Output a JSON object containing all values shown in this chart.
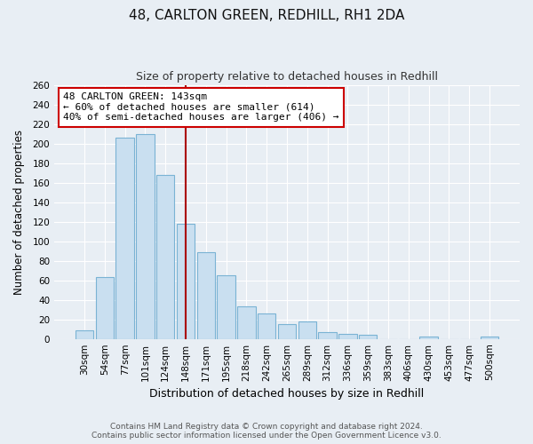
{
  "title": "48, CARLTON GREEN, REDHILL, RH1 2DA",
  "subtitle": "Size of property relative to detached houses in Redhill",
  "xlabel": "Distribution of detached houses by size in Redhill",
  "ylabel": "Number of detached properties",
  "bar_labels": [
    "30sqm",
    "54sqm",
    "77sqm",
    "101sqm",
    "124sqm",
    "148sqm",
    "171sqm",
    "195sqm",
    "218sqm",
    "242sqm",
    "265sqm",
    "289sqm",
    "312sqm",
    "336sqm",
    "359sqm",
    "383sqm",
    "406sqm",
    "430sqm",
    "453sqm",
    "477sqm",
    "500sqm"
  ],
  "bar_values": [
    9,
    63,
    206,
    210,
    168,
    118,
    89,
    65,
    33,
    26,
    15,
    18,
    7,
    5,
    4,
    0,
    0,
    2,
    0,
    0,
    2
  ],
  "bar_color": "#c9dff0",
  "bar_edge_color": "#7ab3d4",
  "highlight_index": 5,
  "vline_color": "#aa0000",
  "annotation_title": "48 CARLTON GREEN: 143sqm",
  "annotation_line1": "← 60% of detached houses are smaller (614)",
  "annotation_line2": "40% of semi-detached houses are larger (406) →",
  "annotation_box_color": "#ffffff",
  "annotation_box_edge": "#cc0000",
  "ylim": [
    0,
    260
  ],
  "yticks": [
    0,
    20,
    40,
    60,
    80,
    100,
    120,
    140,
    160,
    180,
    200,
    220,
    240,
    260
  ],
  "footer_line1": "Contains HM Land Registry data © Crown copyright and database right 2024.",
  "footer_line2": "Contains public sector information licensed under the Open Government Licence v3.0.",
  "background_color": "#e8eef4",
  "plot_bg_color": "#e8eef4",
  "grid_color": "#ffffff",
  "title_fontsize": 11,
  "subtitle_fontsize": 9,
  "tick_fontsize": 7.5,
  "ylabel_fontsize": 8.5,
  "xlabel_fontsize": 9
}
